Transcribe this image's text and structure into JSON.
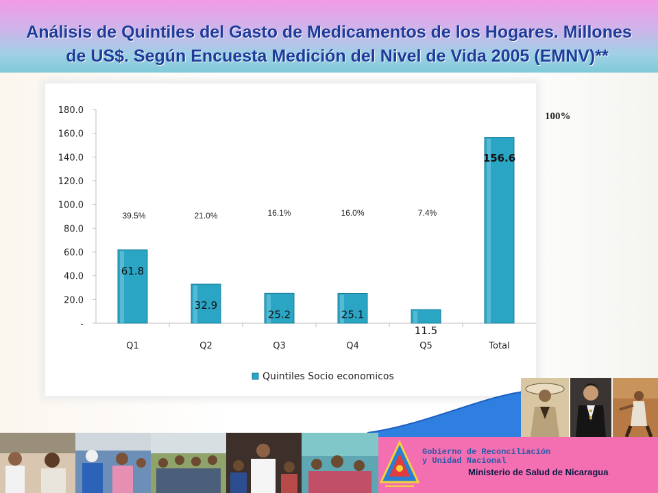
{
  "slide": {
    "title_line1": "Análisis de Quintiles del Gasto de Medicamentos de los Hogares. Millones",
    "title_line2": "de US$.  Según  Encuesta Medición del Nivel de Vida 2005 (EMNV)**",
    "side_note": "100%",
    "gov_line1": "Gobierno de Reconciliación",
    "gov_line2": "y Unidad Nacional",
    "ministry": "Ministerio de Salud de Nicaragua"
  },
  "chart_data": {
    "type": "bar",
    "categories": [
      "Q1",
      "Q2",
      "Q3",
      "Q4",
      "Q5",
      "Total"
    ],
    "series": [
      {
        "name": "Quintiles Socio economicos",
        "values": [
          61.8,
          32.9,
          25.2,
          25.1,
          11.5,
          156.6
        ]
      }
    ],
    "value_labels": [
      "61.8",
      "32.9",
      "25.2",
      "25.1",
      "11.5",
      "156.6"
    ],
    "percent_labels": [
      "39.5%",
      "21.0%",
      "16.1%",
      "16.0%",
      "7.4%"
    ],
    "y_ticks": [
      "-",
      "20.0",
      "40.0",
      "60.0",
      "80.0",
      "100.0",
      "120.0",
      "140.0",
      "160.0",
      "180.0"
    ],
    "ylim": [
      0,
      180
    ],
    "title": "",
    "xlabel": "",
    "ylabel": "",
    "legend": "bottom",
    "grid": false,
    "bar_color": "#2aa5c4"
  }
}
